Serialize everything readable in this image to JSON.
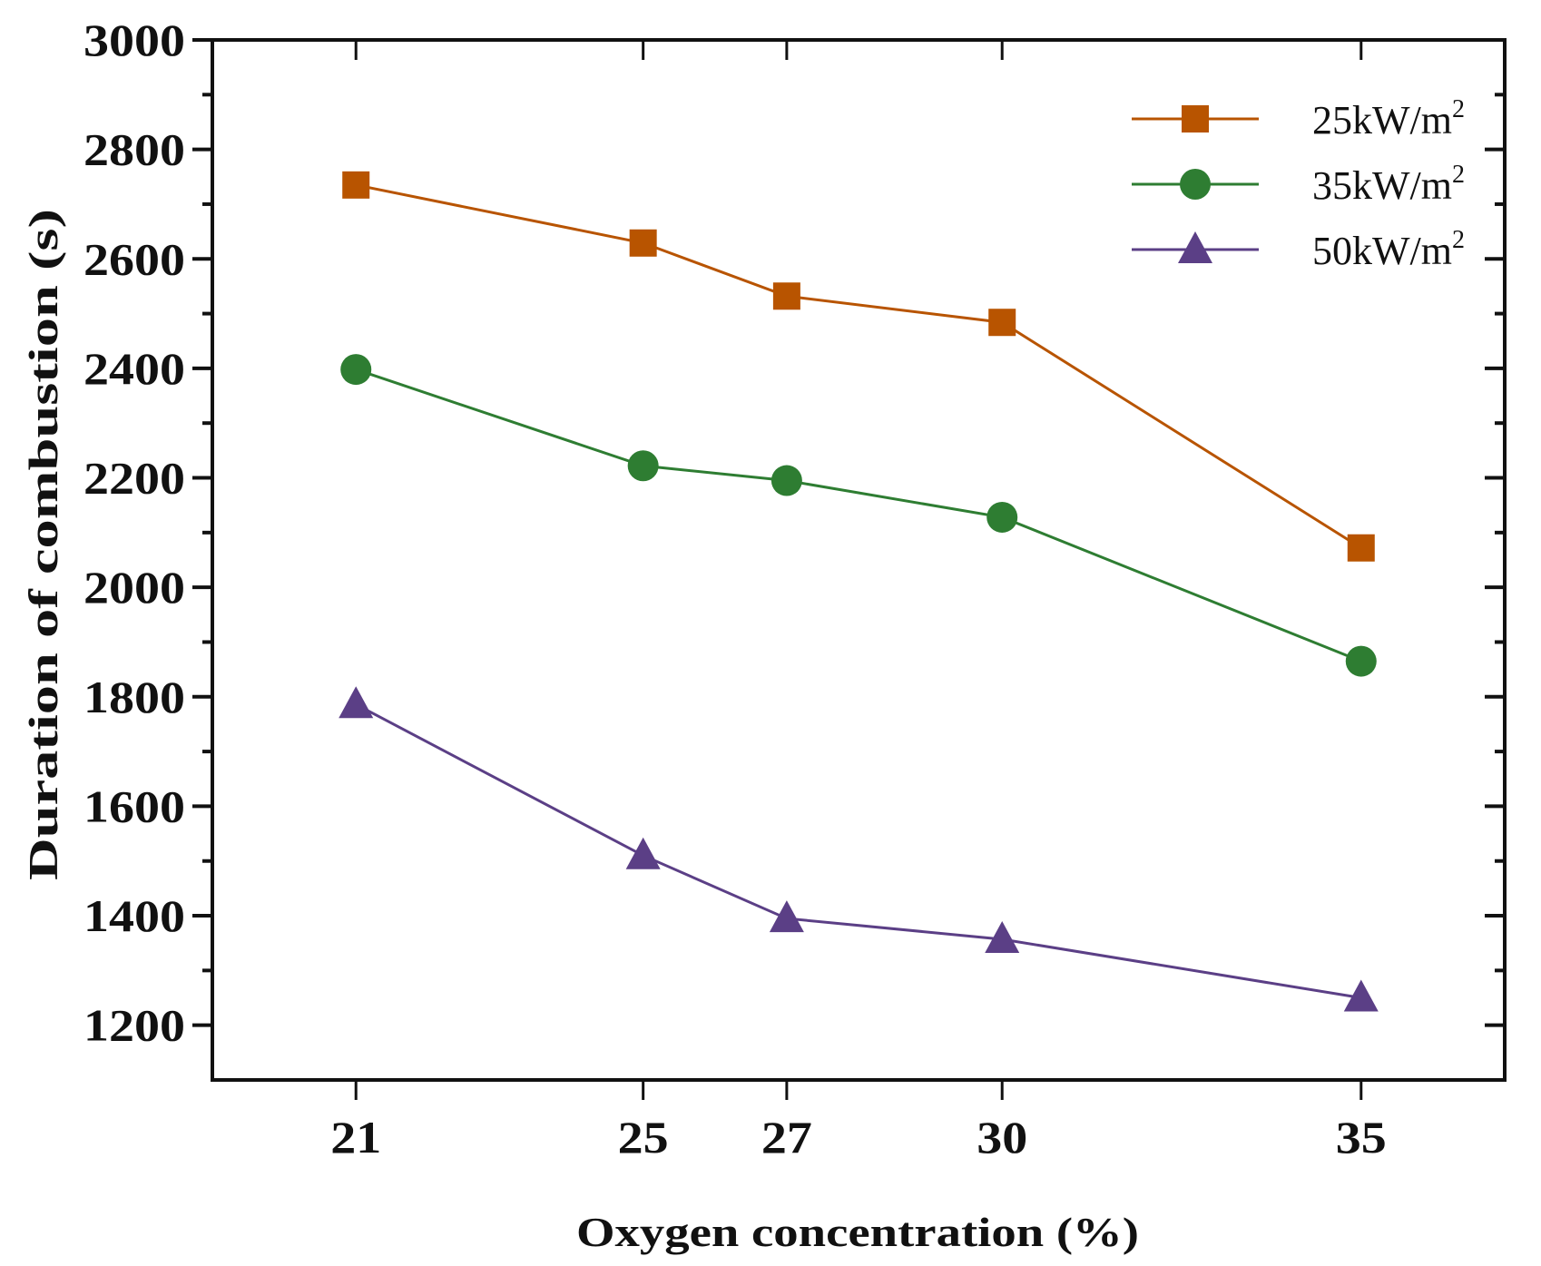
{
  "chart_data": {
    "type": "line",
    "title": "",
    "xlabel": "Oxygen concentration (%)",
    "ylabel": "Duration of combustion (s)",
    "x": [
      21,
      25,
      27,
      30,
      35
    ],
    "xticks": [
      "21",
      "25",
      "27",
      "30",
      "35"
    ],
    "yticks": [
      "1200",
      "1400",
      "1600",
      "1800",
      "2000",
      "2200",
      "2400",
      "2600",
      "2800",
      "3000"
    ],
    "xlim": [
      19,
      37
    ],
    "ylim": [
      1100,
      3000
    ],
    "grid": false,
    "legend_position": "top-right",
    "series": [
      {
        "name": "25kW/m",
        "sup": "2",
        "marker": "square",
        "color": "#b85400",
        "values": [
          2735,
          2629,
          2532,
          2484,
          2072
        ]
      },
      {
        "name": "35kW/m",
        "sup": "2",
        "marker": "circle",
        "color": "#2e7d32",
        "values": [
          2398,
          2222,
          2195,
          2128,
          1865
        ]
      },
      {
        "name": "50kW/m",
        "sup": "2",
        "marker": "triangle",
        "color": "#5b3f86",
        "values": [
          1786,
          1510,
          1395,
          1357,
          1250
        ]
      }
    ]
  }
}
